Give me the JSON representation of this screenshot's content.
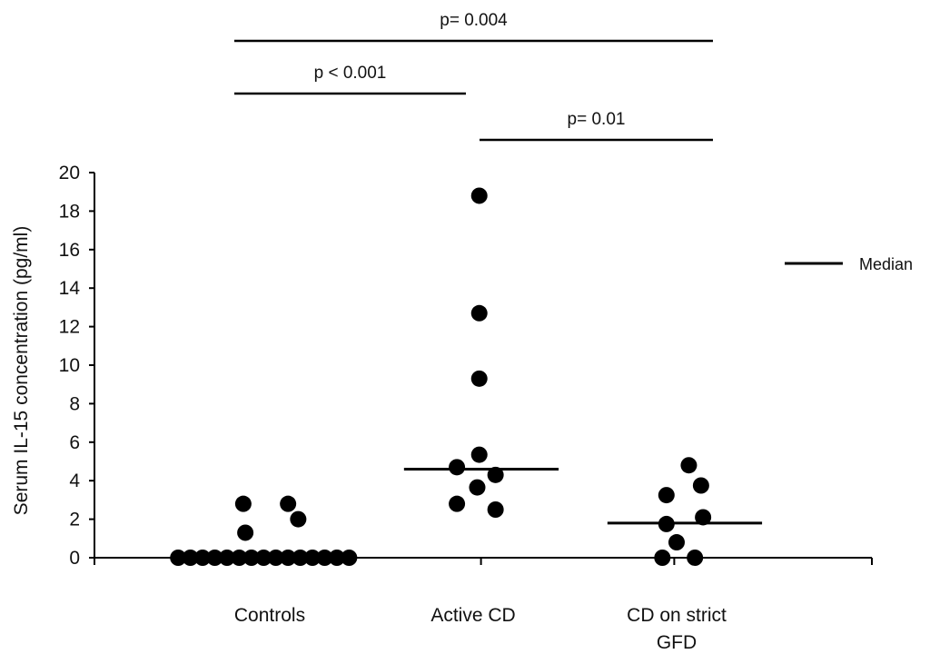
{
  "chart_data": {
    "type": "scatter",
    "ylabel": "Serum IL-15 concentration (pg/ml)",
    "ylim": [
      0,
      20
    ],
    "yticks": [
      0,
      2,
      4,
      6,
      8,
      10,
      12,
      14,
      16,
      18,
      20
    ],
    "categories": [
      {
        "label": "Controls",
        "lines": [
          "Controls"
        ]
      },
      {
        "label": "Active CD",
        "lines": [
          "Active CD"
        ]
      },
      {
        "label": "CD on strict GFD",
        "lines": [
          "CD on strict",
          "GFD"
        ]
      }
    ],
    "groups": [
      {
        "category": "Controls",
        "points": [
          {
            "offset": -0.45,
            "y": 0
          },
          {
            "offset": -0.39,
            "y": 0
          },
          {
            "offset": -0.33,
            "y": 0
          },
          {
            "offset": -0.27,
            "y": 0
          },
          {
            "offset": -0.21,
            "y": 0
          },
          {
            "offset": -0.15,
            "y": 0
          },
          {
            "offset": -0.09,
            "y": 0
          },
          {
            "offset": -0.03,
            "y": 0
          },
          {
            "offset": 0.03,
            "y": 0
          },
          {
            "offset": 0.09,
            "y": 0
          },
          {
            "offset": 0.15,
            "y": 0
          },
          {
            "offset": 0.21,
            "y": 0
          },
          {
            "offset": 0.27,
            "y": 0
          },
          {
            "offset": 0.33,
            "y": 0
          },
          {
            "offset": 0.39,
            "y": 0
          },
          {
            "offset": -0.13,
            "y": 2.8
          },
          {
            "offset": 0.09,
            "y": 2.8
          },
          {
            "offset": -0.12,
            "y": 1.3
          },
          {
            "offset": 0.14,
            "y": 2.0
          }
        ],
        "median": 0
      },
      {
        "category": "Active CD",
        "points": [
          {
            "offset": 0.03,
            "y": 18.8
          },
          {
            "offset": 0.03,
            "y": 12.7
          },
          {
            "offset": 0.03,
            "y": 9.3
          },
          {
            "offset": 0.03,
            "y": 5.35
          },
          {
            "offset": -0.08,
            "y": 4.7
          },
          {
            "offset": 0.11,
            "y": 4.3
          },
          {
            "offset": 0.02,
            "y": 3.65
          },
          {
            "offset": -0.08,
            "y": 2.8
          },
          {
            "offset": 0.11,
            "y": 2.5
          }
        ],
        "median": 4.6
      },
      {
        "category": "CD on strict GFD",
        "points": [
          {
            "offset": 0.06,
            "y": 4.8
          },
          {
            "offset": 0.12,
            "y": 3.75
          },
          {
            "offset": -0.05,
            "y": 3.25
          },
          {
            "offset": 0.13,
            "y": 2.1
          },
          {
            "offset": -0.05,
            "y": 1.75
          },
          {
            "offset": 0.0,
            "y": 0.8
          },
          {
            "offset": -0.07,
            "y": 0
          },
          {
            "offset": 0.09,
            "y": 0
          }
        ],
        "median": 1.8
      }
    ],
    "significance": [
      {
        "label": "p= 0.004",
        "from": "Controls",
        "to": "CD on strict GFD"
      },
      {
        "label": "p < 0.001",
        "from": "Controls",
        "to": "Active CD"
      },
      {
        "label": "p= 0.01",
        "from": "Active CD",
        "to": "CD on strict GFD"
      }
    ],
    "legend": {
      "label": "Median",
      "position": "right"
    }
  }
}
